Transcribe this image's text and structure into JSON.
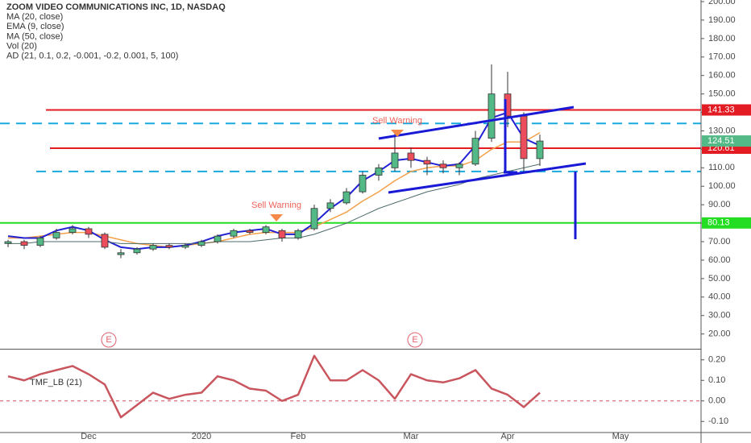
{
  "chart_data": [
    {
      "type": "candlestick",
      "title": "ZOOM VIDEO COMMUNICATIONS INC, 1D, NASDAQ",
      "indicators": [
        "Vol (20)",
        "AD (21, 0.1, 0.2, -0.001, -0.2, 0.001, 5, 100)"
      ],
      "categories": [
        null,
        null,
        null,
        null,
        null,
        "Dec",
        null,
        null,
        null,
        null,
        null,
        null,
        "2020",
        null,
        null,
        null,
        null,
        null,
        "Feb",
        null,
        null,
        null,
        null,
        null,
        null,
        "Mar",
        null,
        null,
        null,
        null,
        null,
        "Apr",
        null,
        null,
        null,
        null,
        null,
        null,
        "May",
        null,
        null,
        null,
        null
      ],
      "open": [
        69,
        70,
        68,
        72,
        75,
        77,
        74,
        63,
        64,
        66,
        68,
        67,
        68,
        70,
        73,
        76,
        75,
        76,
        72,
        77,
        88,
        91,
        97,
        106,
        110,
        118,
        114,
        112,
        110,
        112,
        126,
        150,
        138,
        115,
        null,
        null,
        null,
        null,
        null,
        null,
        null,
        null,
        null
      ],
      "high": [
        71,
        71,
        73,
        77,
        79,
        78,
        75,
        66,
        67,
        69,
        69,
        69,
        71,
        74,
        77,
        77,
        79,
        77,
        77,
        90,
        93,
        99,
        108,
        112,
        129,
        121,
        116,
        114,
        113,
        130,
        166,
        162,
        140,
        128,
        null,
        null,
        null,
        null,
        null,
        null,
        null,
        null,
        null
      ],
      "low": [
        67,
        66,
        67,
        71,
        74,
        72,
        66,
        61,
        63,
        65,
        66,
        66,
        67,
        69,
        72,
        74,
        74,
        70,
        71,
        76,
        86,
        90,
        96,
        103,
        108,
        110,
        106,
        107,
        106,
        111,
        124,
        132,
        108,
        111,
        null,
        null,
        null,
        null,
        null,
        null,
        null,
        null,
        null
      ],
      "close": [
        70,
        68,
        72,
        75,
        77,
        74,
        67,
        64,
        66,
        68,
        67,
        68,
        70,
        73,
        76,
        75,
        78,
        72,
        76,
        88,
        91,
        97,
        106,
        110,
        118,
        114,
        112,
        110,
        112,
        126,
        150,
        138,
        115,
        124.51,
        null,
        null,
        null,
        null,
        null,
        null,
        null,
        null,
        null
      ],
      "up_color": "#53b987",
      "down_color": "#eb4d5c",
      "series": [
        {
          "name": "MA (20, close)",
          "color": "#f5a04a",
          "values": [
            72,
            72,
            73,
            74,
            75,
            75,
            73,
            71,
            69,
            68,
            67,
            68,
            69,
            70,
            72,
            74,
            75,
            75,
            75,
            78,
            82,
            86,
            92,
            97,
            103,
            108,
            110,
            111,
            111,
            114,
            120,
            124,
            124,
            129,
            null,
            null,
            null,
            null,
            null,
            null,
            null,
            null,
            null
          ]
        },
        {
          "name": "EMA (9, close)",
          "color": "#2222d4",
          "values": [
            73,
            72,
            72,
            76,
            78,
            76,
            71,
            67,
            66,
            67,
            67,
            68,
            70,
            73,
            75,
            76,
            77,
            74,
            74,
            80,
            88,
            94,
            103,
            108,
            114,
            115,
            113,
            111,
            112,
            122,
            137,
            140,
            126,
            122,
            null,
            null,
            null,
            null,
            null,
            null,
            null,
            null,
            null
          ]
        },
        {
          "name": "MA (50, close)",
          "color": "#4e6b6b",
          "values": [
            69,
            69,
            70,
            70,
            70,
            70,
            70,
            69,
            69,
            69,
            69,
            69,
            69,
            70,
            70,
            70,
            71,
            72,
            72,
            74,
            77,
            80,
            84,
            88,
            91,
            94,
            97,
            99,
            101,
            104,
            106,
            108,
            110,
            112,
            null,
            null,
            null,
            null,
            null,
            null,
            null,
            null,
            null
          ]
        }
      ],
      "levels": [
        {
          "value": 141.33,
          "color": "#e31b23",
          "tag": true
        },
        {
          "value": 120.61,
          "color": "#e31b23",
          "tag": true
        },
        {
          "value": 80.13,
          "color": "#22dd22",
          "tag": true
        },
        {
          "value": 134,
          "color": "#19aadd",
          "dashed": true
        },
        {
          "value": 108,
          "color": "#19aadd",
          "dashed": true
        }
      ],
      "last_color": "#53b987",
      "annotations": [
        "Sell Warning",
        "Sell Warning"
      ],
      "events": [
        "E",
        "E"
      ],
      "ylim": [
        12,
        200
      ],
      "yticks": [
        {
          "value": 200,
          "label": "200.00"
        },
        {
          "value": 190,
          "label": "190.00"
        },
        {
          "value": 180,
          "label": "180.00"
        },
        {
          "value": 170,
          "label": "170.00"
        },
        {
          "value": 160,
          "label": "160.00"
        },
        {
          "value": 150,
          "label": "150.00"
        },
        {
          "value": 140,
          "label": "140.00"
        },
        {
          "value": 130,
          "label": "130.00"
        },
        {
          "value": 120,
          "label": "120.00"
        },
        {
          "value": 110,
          "label": "110.00"
        },
        {
          "value": 100,
          "label": "100.00"
        },
        {
          "value": 90,
          "label": "90.00"
        },
        {
          "value": 80,
          "label": "80.00"
        },
        {
          "value": 70,
          "label": "70.00"
        },
        {
          "value": 60,
          "label": "60.00"
        },
        {
          "value": 50,
          "label": "50.00"
        },
        {
          "value": 40,
          "label": "40.00"
        },
        {
          "value": 30,
          "label": "30.00"
        },
        {
          "value": 20,
          "label": "20.00"
        }
      ]
    },
    {
      "type": "line",
      "title": "TMF_LB (21)",
      "color": "#c9565e",
      "values": [
        0.12,
        0.1,
        0.13,
        0.15,
        0.17,
        0.13,
        0.08,
        -0.08,
        -0.02,
        0.04,
        0.01,
        0.03,
        0.04,
        0.12,
        0.1,
        0.06,
        0.05,
        0.0,
        0.03,
        0.22,
        0.1,
        0.1,
        0.15,
        0.1,
        0.01,
        0.13,
        0.1,
        0.09,
        0.11,
        0.15,
        0.06,
        0.03,
        -0.03,
        0.04,
        null,
        null,
        null,
        null,
        null,
        null,
        null,
        null,
        null
      ],
      "zero_line": true,
      "ylim": [
        -0.15,
        0.25
      ],
      "yticks": [
        {
          "value": 0.2,
          "label": "0.20"
        },
        {
          "value": 0.1,
          "label": "0.10"
        },
        {
          "value": 0,
          "label": "0.00"
        },
        {
          "value": -0.1,
          "label": "-0.10"
        }
      ]
    }
  ]
}
